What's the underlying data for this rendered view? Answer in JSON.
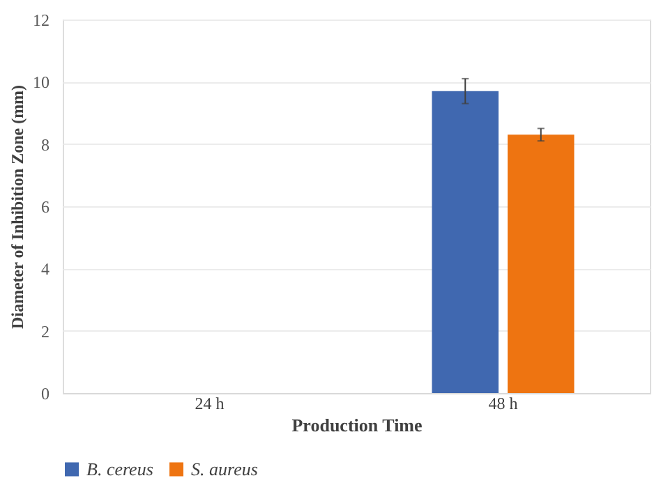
{
  "chart_data": {
    "type": "bar",
    "categories": [
      "24 h",
      "48 h"
    ],
    "series": [
      {
        "name": "B. cereus",
        "color": "#4068b0",
        "values": [
          0,
          9.7
        ],
        "errors": [
          null,
          0.4
        ]
      },
      {
        "name": "S. aureus",
        "color": "#ee7411",
        "values": [
          0,
          8.3
        ],
        "errors": [
          null,
          0.2
        ]
      }
    ],
    "xlabel": "Production Time",
    "ylabel": "Diameter of Inhibition  Zone (mm)",
    "ylim": [
      0,
      12
    ],
    "yticks": [
      0,
      2,
      4,
      6,
      8,
      10,
      12
    ],
    "grid": "y",
    "legend": "bottom"
  }
}
